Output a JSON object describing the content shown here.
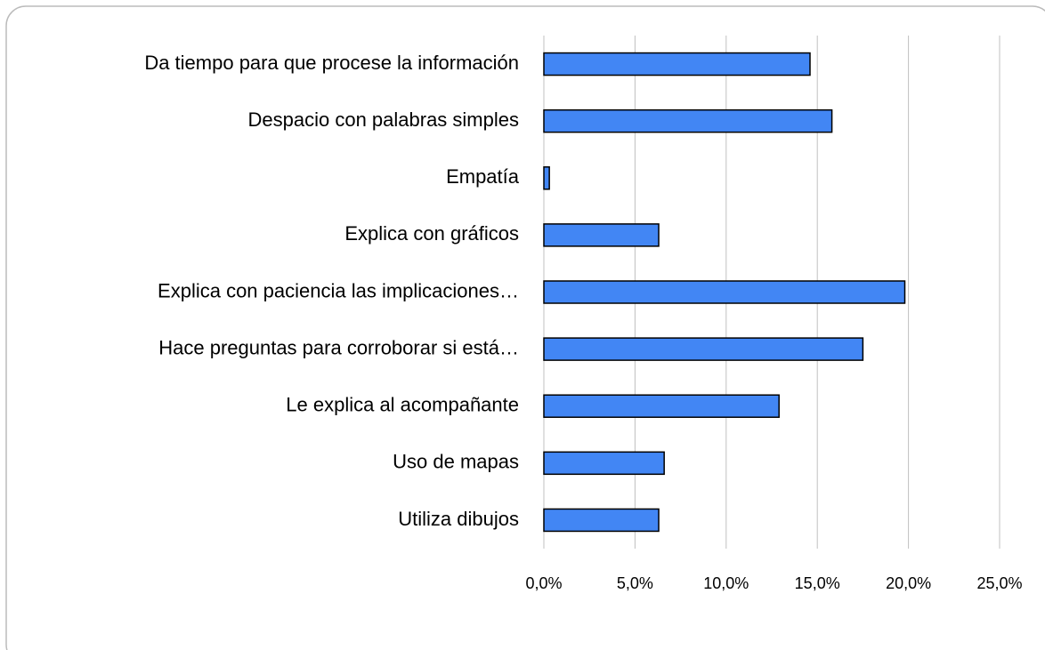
{
  "chart_data": {
    "type": "barh",
    "categories": [
      "Da tiempo para que procese la información",
      "Despacio con palabras simples",
      "Empatía",
      "Explica con gráficos",
      "Explica con paciencia las implicaciones…",
      "Hace preguntas para corroborar si está…",
      "Le explica al acompañante",
      "Uso de mapas",
      "Utiliza dibujos"
    ],
    "values": [
      14.6,
      15.8,
      0.3,
      6.3,
      19.8,
      17.5,
      12.9,
      6.6,
      6.3
    ],
    "color": "#4286f4",
    "xlim": [
      0,
      25
    ],
    "xticks": [
      {
        "value": 0,
        "label": "0,0%"
      },
      {
        "value": 5,
        "label": "5,0%"
      },
      {
        "value": 10,
        "label": "10,0%"
      },
      {
        "value": 15,
        "label": "15,0%"
      },
      {
        "value": 20,
        "label": "20,0%"
      },
      {
        "value": 25,
        "label": "25,0%"
      }
    ],
    "grid": true
  }
}
